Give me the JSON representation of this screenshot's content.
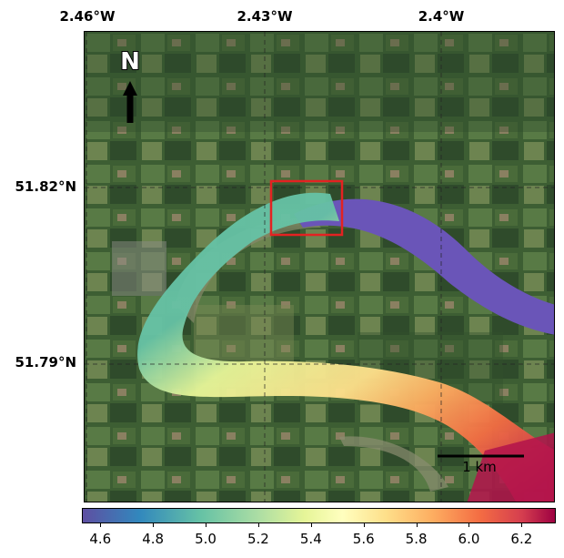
{
  "lon_labels": [
    "2.46°W",
    "2.43°W",
    "2.4°W"
  ],
  "lat_labels": [
    "51.82°N",
    "51.79°N"
  ],
  "north_label": "N",
  "scale_label": "1 km",
  "colorbar": {
    "ticks": [
      "4.6",
      "4.8",
      "5.0",
      "5.2",
      "5.4",
      "5.6",
      "5.8",
      "6.0",
      "6.2"
    ],
    "colormap": "Spectral_r",
    "range": [
      4.53,
      6.33
    ]
  },
  "colors": {
    "river_purple": "#6a55b8",
    "highlight_box": "#e32222"
  }
}
